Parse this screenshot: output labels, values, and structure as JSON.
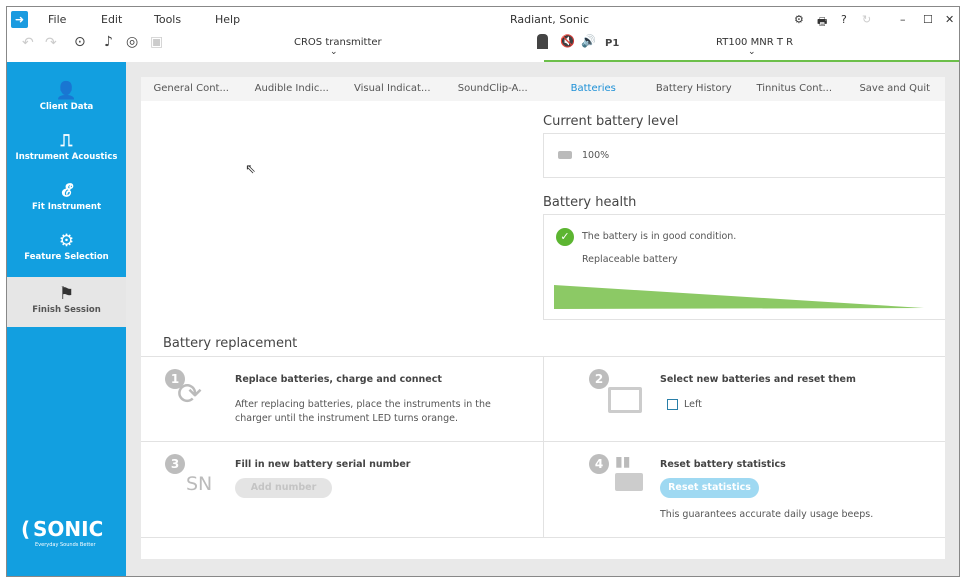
{
  "window": {
    "title": "Radiant, Sonic"
  },
  "menu": [
    "File",
    "Edit",
    "Tools",
    "Help"
  ],
  "toolbar": {
    "left_device": "CROS transmitter",
    "right_device": "RT100 MNR T R",
    "program": "P1"
  },
  "sidebar": {
    "items": [
      {
        "label": "Client Data",
        "icon": "person-icon"
      },
      {
        "label": "Instrument Acoustics",
        "icon": "hearing-aid-icon"
      },
      {
        "label": "Fit Instrument",
        "icon": "ear-icon"
      },
      {
        "label": "Feature Selection",
        "icon": "gears-icon"
      },
      {
        "label": "Finish Session",
        "icon": "flag-icon",
        "selected": true
      }
    ],
    "logo": {
      "name": "SONIC",
      "tagline": "Everyday Sounds Better"
    }
  },
  "tabs": [
    "General Cont...",
    "Audible Indic...",
    "Visual Indicat...",
    "SoundClip-A...",
    "Batteries",
    "Battery History",
    "Tinnitus Cont...",
    "Save and Quit"
  ],
  "active_tab": "Batteries",
  "battery_level": {
    "heading": "Current battery level",
    "value": "100%"
  },
  "battery_health": {
    "heading": "Battery health",
    "status": "The battery is in good condition.",
    "type": "Replaceable battery"
  },
  "replacement": {
    "heading": "Battery replacement",
    "step1": {
      "num": "1",
      "title": "Replace batteries, charge and connect",
      "desc1": "After replacing batteries, place the instruments in the",
      "desc2": "charger until the instrument LED turns orange."
    },
    "step2": {
      "num": "2",
      "title": "Select new batteries and reset them",
      "checkbox_label": "Left",
      "checked": false
    },
    "step3": {
      "num": "3",
      "icon_text": "SN",
      "title": "Fill in new battery serial number",
      "button": "Add number"
    },
    "step4": {
      "num": "4",
      "title": "Reset battery statistics",
      "button": "Reset statistics",
      "note": "This guarantees accurate daily usage beeps."
    }
  },
  "colors": {
    "accent": "#129fe0",
    "green": "#8cc965",
    "check": "#5cb531"
  }
}
